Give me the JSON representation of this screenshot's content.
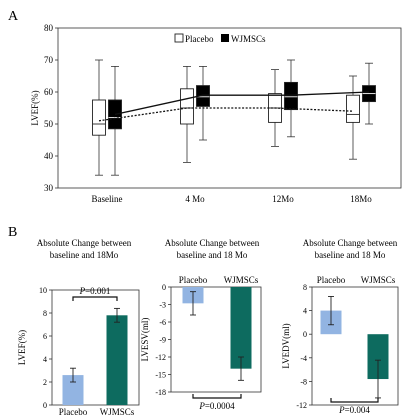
{
  "panel_a": {
    "label": "A"
  },
  "panel_b": {
    "label": "B"
  },
  "chart_data": [
    {
      "type": "box",
      "panel": "A",
      "ylabel": "LVEF(%)",
      "xlabel": "",
      "ylim": [
        30,
        80
      ],
      "yticks": [
        30,
        40,
        50,
        60,
        70,
        80
      ],
      "categories": [
        "Baseline",
        "4 Mo",
        "12Mo",
        "18Mo"
      ],
      "legend_placement": "top-center",
      "series": [
        {
          "name": "Placebo",
          "color": "#ffffff",
          "boxes": [
            {
              "min": 34,
              "q1": 46.5,
              "median": 50,
              "mean": 51,
              "q3": 57.5,
              "max": 70
            },
            {
              "min": 38,
              "q1": 50,
              "median": 55,
              "mean": 55,
              "q3": 61,
              "max": 68
            },
            {
              "min": 43,
              "q1": 50.5,
              "median": 55,
              "mean": 55,
              "q3": 59.5,
              "max": 67
            },
            {
              "min": 39,
              "q1": 50.5,
              "median": 53,
              "mean": 54,
              "q3": 59,
              "max": 65
            }
          ]
        },
        {
          "name": "WJMSCs",
          "color": "#000000",
          "boxes": [
            {
              "min": 34,
              "q1": 48.5,
              "median": 52,
              "mean": 53,
              "q3": 57.5,
              "max": 68
            },
            {
              "min": 45,
              "q1": 55.5,
              "median": 58.5,
              "mean": 59,
              "q3": 62,
              "max": 68
            },
            {
              "min": 46,
              "q1": 54.5,
              "median": 58.5,
              "mean": 59,
              "q3": 63,
              "max": 70
            },
            {
              "min": 50,
              "q1": 57,
              "median": 59.5,
              "mean": 60,
              "q3": 62,
              "max": 69
            }
          ]
        }
      ]
    },
    {
      "type": "bar",
      "panel": "B1",
      "title": "Absolute Change between baseline and 18Mo",
      "title_lines": [
        "Absolute Change between",
        "baseline and 18Mo"
      ],
      "ylabel": "LVEF(%)",
      "ylim": [
        0,
        10
      ],
      "yticks": [
        0,
        2,
        4,
        6,
        8,
        10
      ],
      "categories": [
        "Placebo",
        "WJMSCs"
      ],
      "values": [
        2.6,
        7.8
      ],
      "errors": [
        0.6,
        0.6
      ],
      "colors": [
        "#92b4e2",
        "#0d6b5f"
      ],
      "annotation": {
        "prefix": "P",
        "value": "=0.001"
      }
    },
    {
      "type": "bar",
      "panel": "B2",
      "title": "Absolute Change between baseline and 18 Mo",
      "title_lines": [
        "Absolute Change between",
        "baseline and 18 Mo"
      ],
      "ylabel": "LVESV(ml)",
      "ylim": [
        -18,
        0
      ],
      "yticks": [
        0,
        -3,
        -6,
        -9,
        -12,
        -15,
        -18
      ],
      "categories": [
        "Placebo",
        "WJMSCs"
      ],
      "values": [
        -2.8,
        -14
      ],
      "errors": [
        2.0,
        2.0
      ],
      "colors": [
        "#92b4e2",
        "#0d6b5f"
      ],
      "annotation": {
        "prefix": "P",
        "value": "=0.0004"
      }
    },
    {
      "type": "bar",
      "panel": "B3",
      "title": "Absolute Change between baseline and 18 Mo",
      "title_lines": [
        "Absolute Change between",
        "baseline and 18 Mo"
      ],
      "ylabel": "LVEDV(ml)",
      "ylim": [
        -12,
        8
      ],
      "yticks": [
        8,
        4,
        0,
        -4,
        -8,
        -12
      ],
      "categories": [
        "Placebo",
        "WJMSCs"
      ],
      "values": [
        4,
        -7.6
      ],
      "errors": [
        2.4,
        3.2
      ],
      "colors": [
        "#92b4e2",
        "#0d6b5f"
      ],
      "annotation": {
        "prefix": "P",
        "value": "=0.004"
      }
    }
  ]
}
